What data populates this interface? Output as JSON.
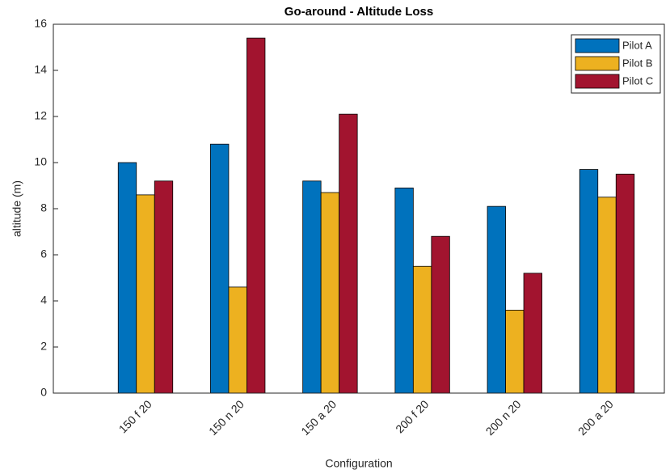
{
  "chart_data": {
    "type": "bar",
    "title": "Go-around - Altitude Loss",
    "x_label": "Configuration",
    "y_label": "altitude (m)",
    "categories": [
      "150 f 20",
      "150 n 20",
      "150 a 20",
      "200 f 20",
      "200 n 20",
      "200 a 20"
    ],
    "series": [
      {
        "name": "Pilot A",
        "color": "#0072bd",
        "values": [
          10,
          10.8,
          9.2,
          8.9,
          8.1,
          9.7
        ]
      },
      {
        "name": "Pilot B",
        "color": "#edb120",
        "values": [
          8.6,
          4.6,
          8.7,
          5.5,
          3.6,
          8.5
        ]
      },
      {
        "name": "Pilot C",
        "color": "#a2142f",
        "values": [
          9.2,
          15.4,
          12.1,
          6.8,
          5.2,
          9.5
        ]
      }
    ],
    "ylim": [
      0,
      16
    ],
    "yticks": [
      0,
      2,
      4,
      6,
      8,
      10,
      12,
      14,
      16
    ],
    "grid": false,
    "legend": "top-right"
  }
}
